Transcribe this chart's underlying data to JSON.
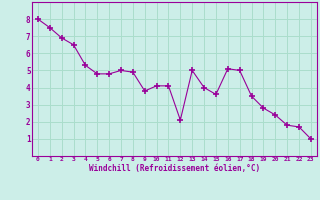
{
  "x": [
    0,
    1,
    2,
    3,
    4,
    5,
    6,
    7,
    8,
    9,
    10,
    11,
    12,
    13,
    14,
    15,
    16,
    17,
    18,
    19,
    20,
    21,
    22,
    23
  ],
  "y": [
    8.0,
    7.5,
    6.9,
    6.5,
    5.3,
    4.8,
    4.8,
    5.0,
    4.9,
    3.8,
    4.1,
    4.1,
    2.1,
    5.0,
    4.0,
    3.6,
    5.1,
    5.0,
    3.5,
    2.8,
    2.4,
    1.8,
    1.7,
    1.0
  ],
  "line_color": "#990099",
  "marker": "+",
  "marker_size": 4,
  "bg_color": "#cceee8",
  "grid_color": "#aaddcc",
  "xlabel": "Windchill (Refroidissement éolien,°C)",
  "xlabel_color": "#990099",
  "tick_color": "#990099",
  "spine_color": "#990099",
  "ylim": [
    0,
    9
  ],
  "xlim": [
    -0.5,
    23.5
  ],
  "yticks": [
    1,
    2,
    3,
    4,
    5,
    6,
    7,
    8
  ],
  "xticks": [
    0,
    1,
    2,
    3,
    4,
    5,
    6,
    7,
    8,
    9,
    10,
    11,
    12,
    13,
    14,
    15,
    16,
    17,
    18,
    19,
    20,
    21,
    22,
    23
  ]
}
